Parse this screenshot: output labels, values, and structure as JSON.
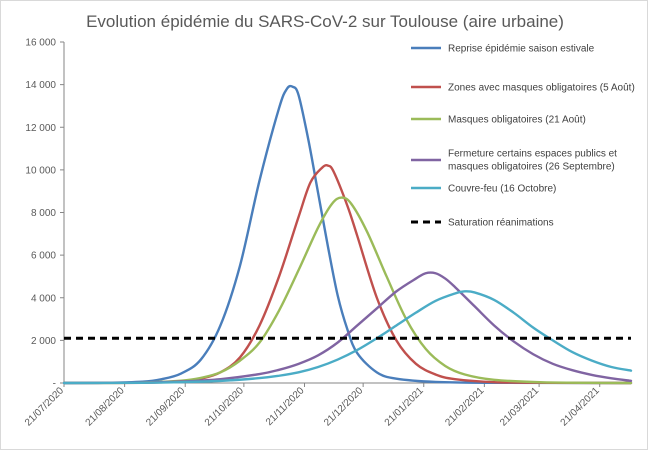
{
  "chart_data": {
    "type": "line",
    "title": "Evolution épidémie du SARS-CoV-2 sur Toulouse (aire urbaine)",
    "xlabel": "",
    "ylabel": "",
    "ylim": [
      0,
      16000
    ],
    "y_ticks": [
      0,
      2000,
      4000,
      6000,
      8000,
      10000,
      12000,
      14000,
      16000
    ],
    "y_tick_labels": [
      "-",
      "2 000",
      "4 000",
      "6 000",
      "8 000",
      "10 000",
      "12 000",
      "14 000",
      "16 000"
    ],
    "x_unit": "days since 21/07/2020",
    "xlim": [
      0,
      290
    ],
    "x_ticks": [
      {
        "day": 0,
        "label": "21/07/2020"
      },
      {
        "day": 31,
        "label": "21/08/2020"
      },
      {
        "day": 62,
        "label": "21/09/2020"
      },
      {
        "day": 92,
        "label": "21/10/2020"
      },
      {
        "day": 123,
        "label": "21/11/2020"
      },
      {
        "day": 153,
        "label": "21/12/2020"
      },
      {
        "day": 184,
        "label": "21/01/2021"
      },
      {
        "day": 215,
        "label": "21/02/2021"
      },
      {
        "day": 243,
        "label": "21/03/2021"
      },
      {
        "day": 274,
        "label": "21/04/2021"
      }
    ],
    "legend_position": "top-right",
    "series": [
      {
        "name": "Reprise épidémie saison estivale",
        "color": "#4a7ebb",
        "dash": false,
        "points": [
          [
            0,
            0
          ],
          [
            20,
            10
          ],
          [
            40,
            60
          ],
          [
            50,
            180
          ],
          [
            60,
            450
          ],
          [
            70,
            1100
          ],
          [
            80,
            2700
          ],
          [
            90,
            5500
          ],
          [
            100,
            9500
          ],
          [
            110,
            12900
          ],
          [
            114,
            13800
          ],
          [
            117,
            13900
          ],
          [
            120,
            13500
          ],
          [
            125,
            11400
          ],
          [
            130,
            8900
          ],
          [
            135,
            6400
          ],
          [
            140,
            4100
          ],
          [
            145,
            2500
          ],
          [
            150,
            1400
          ],
          [
            160,
            500
          ],
          [
            170,
            200
          ],
          [
            190,
            50
          ],
          [
            220,
            10
          ],
          [
            290,
            0
          ]
        ]
      },
      {
        "name": "Zones avec masques obligatoires (5 Août)",
        "color": "#c0504d",
        "dash": false,
        "points": [
          [
            0,
            0
          ],
          [
            40,
            10
          ],
          [
            60,
            80
          ],
          [
            70,
            200
          ],
          [
            80,
            500
          ],
          [
            90,
            1200
          ],
          [
            100,
            2700
          ],
          [
            110,
            5000
          ],
          [
            120,
            7800
          ],
          [
            126,
            9400
          ],
          [
            132,
            10100
          ],
          [
            135,
            10200
          ],
          [
            138,
            9900
          ],
          [
            145,
            8300
          ],
          [
            150,
            6900
          ],
          [
            160,
            4000
          ],
          [
            170,
            2000
          ],
          [
            180,
            900
          ],
          [
            190,
            400
          ],
          [
            200,
            180
          ],
          [
            220,
            40
          ],
          [
            250,
            10
          ],
          [
            290,
            0
          ]
        ]
      },
      {
        "name": "Masques obligatoires (21 Août)",
        "color": "#9bbb59",
        "dash": false,
        "points": [
          [
            0,
            0
          ],
          [
            40,
            20
          ],
          [
            60,
            110
          ],
          [
            70,
            240
          ],
          [
            80,
            500
          ],
          [
            90,
            1050
          ],
          [
            100,
            1900
          ],
          [
            110,
            3400
          ],
          [
            120,
            5300
          ],
          [
            130,
            7300
          ],
          [
            137,
            8400
          ],
          [
            142,
            8700
          ],
          [
            147,
            8400
          ],
          [
            155,
            7100
          ],
          [
            165,
            5000
          ],
          [
            175,
            3000
          ],
          [
            185,
            1600
          ],
          [
            195,
            800
          ],
          [
            205,
            400
          ],
          [
            220,
            150
          ],
          [
            245,
            30
          ],
          [
            275,
            5
          ],
          [
            290,
            0
          ]
        ]
      },
      {
        "name": "Fermeture certains espaces publics et masques obligatoires (26 Septembre)",
        "color": "#8064a2",
        "dash": false,
        "points": [
          [
            0,
            0
          ],
          [
            40,
            20
          ],
          [
            60,
            70
          ],
          [
            80,
            180
          ],
          [
            100,
            420
          ],
          [
            110,
            620
          ],
          [
            120,
            900
          ],
          [
            130,
            1300
          ],
          [
            140,
            1900
          ],
          [
            150,
            2700
          ],
          [
            160,
            3500
          ],
          [
            170,
            4300
          ],
          [
            180,
            4900
          ],
          [
            185,
            5150
          ],
          [
            190,
            5150
          ],
          [
            195,
            4900
          ],
          [
            200,
            4500
          ],
          [
            210,
            3600
          ],
          [
            220,
            2700
          ],
          [
            230,
            1950
          ],
          [
            240,
            1350
          ],
          [
            250,
            900
          ],
          [
            260,
            600
          ],
          [
            270,
            380
          ],
          [
            280,
            220
          ],
          [
            290,
            100
          ]
        ]
      },
      {
        "name": "Couvre-feu (16 Octobre)",
        "color": "#4bacc6",
        "dash": false,
        "points": [
          [
            0,
            0
          ],
          [
            40,
            10
          ],
          [
            60,
            40
          ],
          [
            80,
            100
          ],
          [
            100,
            230
          ],
          [
            110,
            340
          ],
          [
            120,
            500
          ],
          [
            130,
            750
          ],
          [
            140,
            1100
          ],
          [
            150,
            1550
          ],
          [
            160,
            2100
          ],
          [
            170,
            2700
          ],
          [
            180,
            3300
          ],
          [
            190,
            3850
          ],
          [
            200,
            4200
          ],
          [
            205,
            4300
          ],
          [
            210,
            4250
          ],
          [
            220,
            3900
          ],
          [
            230,
            3300
          ],
          [
            240,
            2600
          ],
          [
            250,
            2000
          ],
          [
            260,
            1450
          ],
          [
            270,
            1050
          ],
          [
            280,
            750
          ],
          [
            290,
            580
          ]
        ]
      },
      {
        "name": "Saturation réanimations",
        "color": "#000000",
        "dash": true,
        "points": [
          [
            0,
            2100
          ],
          [
            290,
            2100
          ]
        ]
      }
    ]
  }
}
